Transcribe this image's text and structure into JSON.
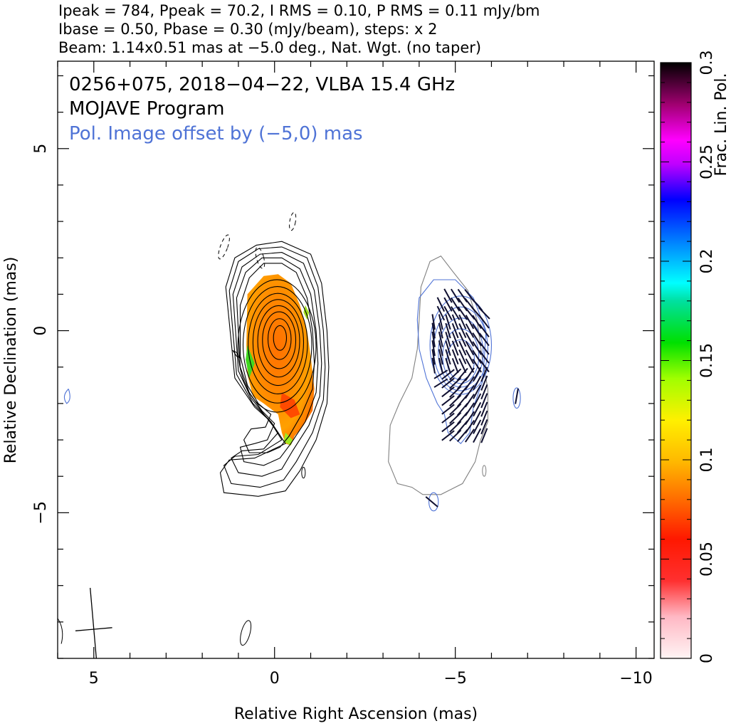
{
  "header": {
    "line1": "Ipeak = 784, Ppeak = 70.2, I RMS = 0.10, P RMS = 0.11 mJy/bm",
    "line2": "Ibase = 0.50, Pbase = 0.30 (mJy/beam), steps: x 2",
    "line3": "Beam: 1.14x0.51 mas at −5.0 deg., Nat. Wgt. (no taper)"
  },
  "chart_data": {
    "type": "heatmap",
    "title": "0256+075, 2018−04−22, VLBA 15.4 GHz",
    "subtitle": "MOJAVE Program",
    "annotation": "Pol. Image offset by (−5,0) mas",
    "annotation_color": "#4f73d6",
    "xlabel": "Relative Right Ascension (mas)",
    "ylabel": "Relative Declination (mas)",
    "xlim": [
      6,
      -10.5
    ],
    "ylim": [
      -9,
      7.4
    ],
    "x_ticks": [
      5,
      0,
      -5,
      -10
    ],
    "x_tick_labels": [
      "5",
      "0",
      "−5",
      "−10"
    ],
    "y_ticks": [
      5,
      0,
      -5
    ],
    "y_tick_labels": [
      "5",
      "0",
      "−5"
    ],
    "colorbar": {
      "label": "Frac. Lin. Pol.",
      "range": [
        0,
        0.3
      ],
      "ticks": [
        0,
        0.05,
        0.1,
        0.15,
        0.2,
        0.25,
        0.3
      ],
      "tick_labels": [
        "0",
        "0.05",
        "0.1",
        "0.15",
        "0.2",
        "0.25",
        "0.3"
      ]
    },
    "beam": {
      "major_mas": 1.14,
      "minor_mas": 0.51,
      "pa_deg": -5.0,
      "center": [
        5,
        -8.2
      ]
    },
    "stokes_I_core": {
      "center": [
        -0.15,
        -0.2
      ],
      "peak_mJy": 784
    },
    "pol_image_offset": [
      -5,
      0
    ]
  },
  "colors": {
    "total_intensity_contour": "#000000",
    "pol_offset_contour_gray": "#808080",
    "pol_contour_blue": "#4f73d6",
    "evpa_vectors": "#101030"
  }
}
